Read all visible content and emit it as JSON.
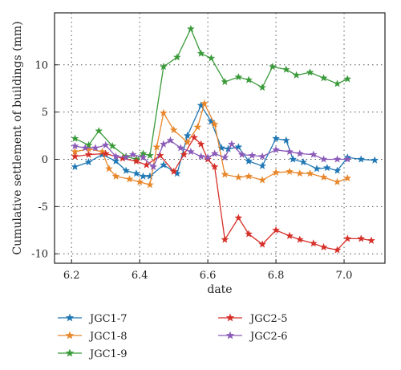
{
  "chart_data": {
    "type": "line",
    "xlabel": "date",
    "ylabel": "Cumulative settlement of buildings (mm)",
    "xlim": [
      6.15,
      7.12
    ],
    "ylim": [
      -11,
      15.5
    ],
    "xticks": [
      6.2,
      6.4,
      6.6,
      6.8,
      7.0
    ],
    "xtick_labels": [
      "6.2",
      "6.4",
      "6.6",
      "6.8",
      "7.0"
    ],
    "yticks": [
      -10,
      -5,
      0,
      5,
      10
    ],
    "ytick_labels": [
      "-10",
      "-5",
      "0",
      "5",
      "10"
    ],
    "grid": "dotted",
    "legend_position": "bottom",
    "series": [
      {
        "name": "JGC1-7",
        "color": "#1f77b4",
        "x": [
          6.21,
          6.25,
          6.29,
          6.33,
          6.36,
          6.39,
          6.41,
          6.43,
          6.47,
          6.51,
          6.54,
          6.58,
          6.61,
          6.64,
          6.66,
          6.69,
          6.72,
          6.76,
          6.8,
          6.83,
          6.85,
          6.88,
          6.92,
          6.95,
          6.98,
          7.01,
          7.05,
          7.09
        ],
        "y": [
          -0.8,
          -0.3,
          0.5,
          -0.2,
          -1.2,
          -1.5,
          -1.8,
          -1.8,
          -0.6,
          -1.5,
          2.5,
          5.7,
          4.0,
          1.2,
          1.1,
          1.3,
          -0.2,
          -0.7,
          2.2,
          2.0,
          0.0,
          -0.3,
          -1.0,
          -0.9,
          -1.2,
          0.2,
          0.0,
          -0.1
        ]
      },
      {
        "name": "JGC1-8",
        "color": "#e8862a",
        "x": [
          6.21,
          6.25,
          6.29,
          6.31,
          6.33,
          6.37,
          6.4,
          6.43,
          6.45,
          6.47,
          6.5,
          6.54,
          6.57,
          6.59,
          6.62,
          6.65,
          6.69,
          6.72,
          6.76,
          6.8,
          6.84,
          6.87,
          6.9,
          6.94,
          6.98,
          7.01
        ],
        "y": [
          0.8,
          1.1,
          0.8,
          -1.0,
          -1.8,
          -2.1,
          -2.4,
          -2.7,
          1.3,
          4.9,
          3.1,
          1.8,
          3.4,
          5.9,
          3.7,
          -1.6,
          -1.9,
          -1.8,
          -2.2,
          -1.4,
          -1.3,
          -1.5,
          -1.5,
          -1.9,
          -2.4,
          -2.0
        ]
      },
      {
        "name": "JGC1-9",
        "color": "#3a9a3a",
        "x": [
          6.21,
          6.25,
          6.28,
          6.32,
          6.36,
          6.39,
          6.41,
          6.43,
          6.47,
          6.51,
          6.55,
          6.58,
          6.61,
          6.65,
          6.69,
          6.72,
          6.76,
          6.79,
          6.83,
          6.86,
          6.9,
          6.94,
          6.98,
          7.01
        ],
        "y": [
          2.2,
          1.5,
          3.0,
          1.4,
          0.3,
          0.0,
          0.6,
          0.4,
          9.8,
          10.8,
          13.8,
          11.2,
          10.7,
          8.2,
          8.7,
          8.4,
          7.6,
          9.8,
          9.5,
          8.9,
          9.2,
          8.6,
          8.0,
          8.5
        ]
      },
      {
        "name": "JGC2-5",
        "color": "#d62f28",
        "x": [
          6.21,
          6.25,
          6.3,
          6.35,
          6.39,
          6.42,
          6.46,
          6.5,
          6.53,
          6.56,
          6.58,
          6.6,
          6.62,
          6.65,
          6.69,
          6.72,
          6.76,
          6.8,
          6.84,
          6.87,
          6.91,
          6.94,
          6.98,
          7.01,
          7.05,
          7.08
        ],
        "y": [
          0.3,
          0.5,
          0.6,
          0.1,
          -0.2,
          -0.6,
          0.4,
          -1.3,
          0.5,
          2.3,
          1.6,
          0.0,
          -0.8,
          -8.5,
          -6.2,
          -7.9,
          -9.0,
          -7.5,
          -8.1,
          -8.5,
          -8.9,
          -9.3,
          -9.6,
          -8.4,
          -8.4,
          -8.6
        ]
      },
      {
        "name": "JGC2-6",
        "color": "#8a5ab8",
        "x": [
          6.21,
          6.24,
          6.27,
          6.3,
          6.33,
          6.36,
          6.38,
          6.41,
          6.44,
          6.47,
          6.49,
          6.52,
          6.55,
          6.58,
          6.6,
          6.62,
          6.65,
          6.67,
          6.7,
          6.73,
          6.76,
          6.8,
          6.84,
          6.87,
          6.91,
          6.94,
          6.98,
          7.01
        ],
        "y": [
          1.4,
          1.2,
          1.2,
          1.5,
          0.3,
          0.2,
          0.5,
          0.2,
          -0.8,
          1.6,
          2.0,
          1.2,
          0.8,
          0.3,
          0.2,
          0.6,
          0.2,
          1.6,
          0.5,
          0.4,
          0.3,
          1.0,
          0.8,
          0.6,
          0.5,
          0.0,
          0.0,
          0.0
        ]
      }
    ]
  }
}
